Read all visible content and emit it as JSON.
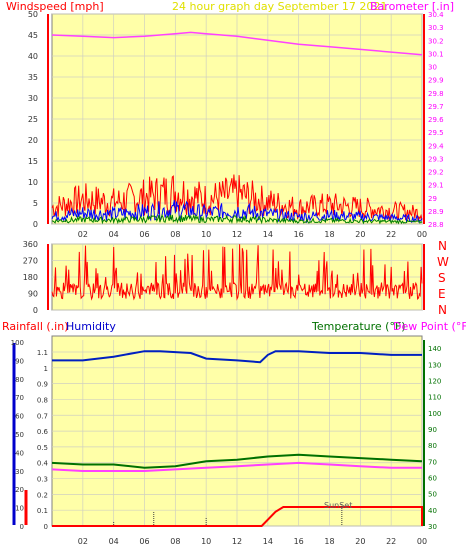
{
  "header": {
    "windspeed_label": "Windspeed [mph]",
    "title": "24 hour graph day   September 17 2021",
    "barometer_label": "Barometer [.in]"
  },
  "lower_header": {
    "rainfall_label": "Rainfall (.in)",
    "humidity_label": "Humidity",
    "temperature_label": "Temperature (°F)",
    "dewpoint_label": "Dew Point (°F)"
  },
  "compass": [
    "N",
    "W",
    "S",
    "E",
    "N"
  ],
  "sunset_label": "SunSet",
  "colors": {
    "background": "#ffffff",
    "plot_bg": "#ffffa8",
    "grid": "#c8c8c8",
    "wind": "#ff0000",
    "gust": "#0000ff",
    "avg": "#008000",
    "barometer": "#ff40ff",
    "humidity": "#0020c0",
    "temperature": "#007000",
    "dewpoint": "#ff40ff",
    "rain": "#ff0000",
    "left_axis_red": "#ff0000",
    "left_axis_blue": "#0000cc",
    "title": "#e0e000"
  },
  "chart_data": [
    {
      "type": "line",
      "name": "wind-panel",
      "x_ticks": [
        "02",
        "04",
        "06",
        "08",
        "10",
        "12",
        "14",
        "16",
        "18",
        "20",
        "22",
        "00"
      ],
      "y_left": {
        "label": "Windspeed [mph]",
        "lim": [
          0,
          50
        ],
        "ticks": [
          0,
          5,
          10,
          15,
          20,
          25,
          30,
          35,
          40,
          45,
          50
        ]
      },
      "y_right": {
        "label": "Barometer [.in]",
        "lim": [
          28.8,
          30.4
        ],
        "ticks": [
          "28.8",
          "28.9",
          "29",
          "29.1",
          "29.2",
          "29.3",
          "29.4",
          "29.5",
          "29.6",
          "29.7",
          "29.8",
          "29.9",
          "30",
          "30.1",
          "30.2",
          "30.3",
          "30.4"
        ]
      },
      "barometer": {
        "x": [
          0,
          2,
          4,
          6,
          8,
          9,
          10,
          12,
          14,
          16,
          18,
          20,
          22,
          24
        ],
        "y": [
          30.24,
          30.23,
          30.22,
          30.23,
          30.25,
          30.26,
          30.25,
          30.23,
          30.2,
          30.17,
          30.15,
          30.13,
          30.11,
          30.09
        ]
      },
      "wind_peak": {
        "x": [
          0,
          2,
          4,
          6,
          8,
          10,
          12,
          14,
          16,
          18,
          20,
          22,
          24
        ],
        "y": [
          6,
          9,
          8,
          10,
          12,
          9,
          11,
          8,
          6,
          7,
          6,
          5,
          4
        ]
      },
      "grid": true
    },
    {
      "type": "scatter",
      "name": "wind-direction-panel",
      "y_ticks": [
        0,
        90,
        180,
        270,
        360
      ],
      "ylim": [
        0,
        360
      ],
      "x_ticks": [
        "02",
        "04",
        "06",
        "08",
        "10",
        "12",
        "14",
        "16",
        "18",
        "20",
        "22",
        "00"
      ],
      "grid": true
    },
    {
      "type": "line",
      "name": "temp-humidity-rain-panel",
      "x_ticks": [
        "02",
        "04",
        "06",
        "08",
        "10",
        "12",
        "14",
        "16",
        "18",
        "20",
        "22",
        "00"
      ],
      "y_left_outer": {
        "label": "Rainfall (.in)",
        "lim": [
          0,
          1.1
        ],
        "ticks": [
          "0",
          "0.1",
          "0.2",
          "0.3",
          "0.4",
          "0.5",
          "0.6",
          "0.7",
          "0.8",
          "0.9",
          "1",
          "1.1"
        ]
      },
      "y_left_inner": {
        "label": "Humidity",
        "lim": [
          0,
          100
        ],
        "ticks": [
          0,
          10,
          20,
          30,
          40,
          50,
          60,
          70,
          80,
          90,
          100
        ]
      },
      "y_right": {
        "label": "Temperature (°F)",
        "lim": [
          30,
          145
        ],
        "ticks": [
          30,
          40,
          50,
          60,
          70,
          80,
          90,
          100,
          110,
          120,
          130,
          140
        ]
      },
      "humidity": {
        "x": [
          0,
          2,
          4,
          6,
          7,
          9,
          10,
          12,
          13.5,
          14,
          14.5,
          16,
          18,
          20,
          22,
          24
        ],
        "y": [
          90,
          90,
          92,
          95,
          95,
          94,
          91,
          90,
          89,
          93,
          95,
          95,
          94,
          94,
          93,
          93
        ]
      },
      "temperature": {
        "x": [
          0,
          2,
          4,
          6,
          8,
          10,
          12,
          14,
          16,
          18,
          20,
          22,
          24
        ],
        "y": [
          69,
          68,
          68,
          66,
          67,
          70,
          71,
          73,
          74,
          73,
          72,
          71,
          70
        ]
      },
      "dewpoint": {
        "x": [
          0,
          2,
          4,
          6,
          8,
          10,
          12,
          14,
          16,
          18,
          20,
          22,
          24
        ],
        "y": [
          65,
          64,
          64,
          64,
          65,
          66,
          67,
          68,
          69,
          68,
          67,
          66,
          66
        ]
      },
      "rain": {
        "x": [
          0,
          13.6,
          14.5,
          15,
          24
        ],
        "y": [
          0,
          0,
          0.09,
          0.12,
          0.12
        ]
      },
      "grid": true
    }
  ]
}
